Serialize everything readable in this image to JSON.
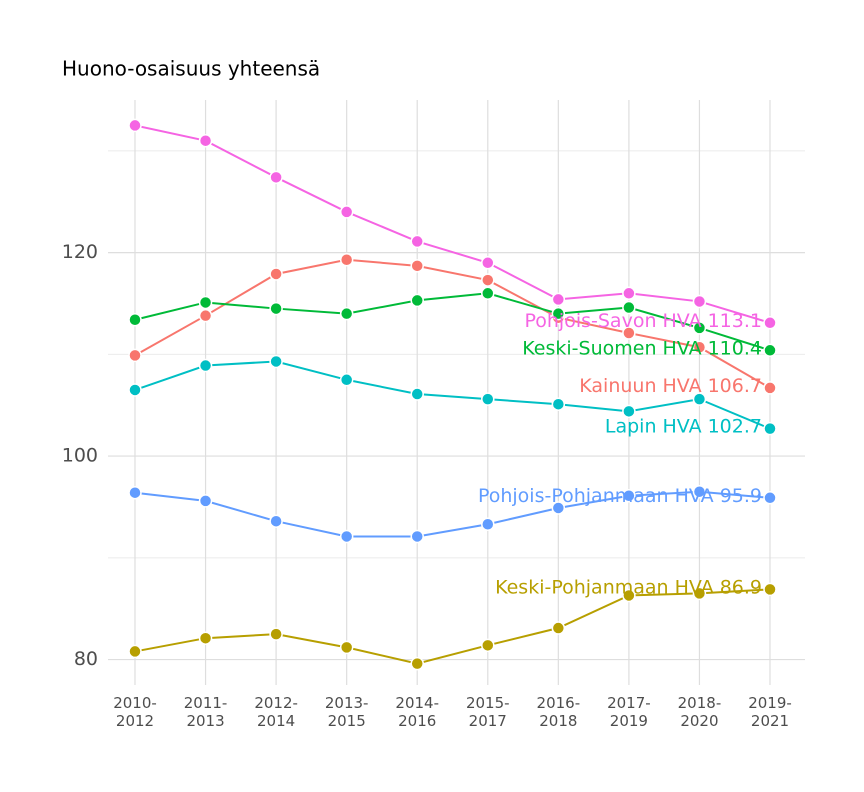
{
  "chart_data": {
    "type": "line",
    "title": "Huono-osaisuus yhteensä",
    "categories": [
      "2010-\n2012",
      "2011-\n2013",
      "2012-\n2014",
      "2013-\n2015",
      "2014-\n2016",
      "2015-\n2017",
      "2016-\n2018",
      "2017-\n2019",
      "2018-\n2020",
      "2019-\n2021"
    ],
    "series": [
      {
        "name": "Pohjois-Savon HVA",
        "color": "#f564e3",
        "values": [
          132.5,
          131.0,
          127.4,
          124.0,
          121.1,
          119.0,
          115.4,
          116.0,
          115.2,
          113.1
        ]
      },
      {
        "name": "Kainuun HVA",
        "color": "#f8766d",
        "values": [
          109.9,
          113.8,
          117.9,
          119.3,
          118.7,
          117.3,
          113.6,
          112.1,
          110.7,
          106.7
        ]
      },
      {
        "name": "Keski-Suomen HVA",
        "color": "#00ba38",
        "values": [
          113.4,
          115.1,
          114.5,
          114.0,
          115.3,
          116.0,
          114.0,
          114.6,
          112.6,
          110.4
        ]
      },
      {
        "name": "Lapin HVA",
        "color": "#00bfc4",
        "values": [
          106.5,
          108.9,
          109.3,
          107.5,
          106.1,
          105.6,
          105.1,
          104.4,
          105.6,
          102.7
        ]
      },
      {
        "name": "Pohjois-Pohjanmaan HVA",
        "color": "#619cff",
        "values": [
          96.4,
          95.6,
          93.6,
          92.1,
          92.1,
          93.3,
          94.9,
          96.1,
          96.5,
          95.9
        ]
      },
      {
        "name": "Keski-Pohjanmaan HVA",
        "color": "#b79f00",
        "values": [
          80.8,
          82.1,
          82.5,
          81.2,
          79.6,
          81.4,
          83.1,
          86.3,
          86.5,
          86.9
        ]
      }
    ],
    "ylim": [
      77.5,
      135
    ],
    "yticks": [
      80,
      100,
      120
    ],
    "yminorticks": [
      90,
      110,
      130
    ],
    "grid": true
  }
}
